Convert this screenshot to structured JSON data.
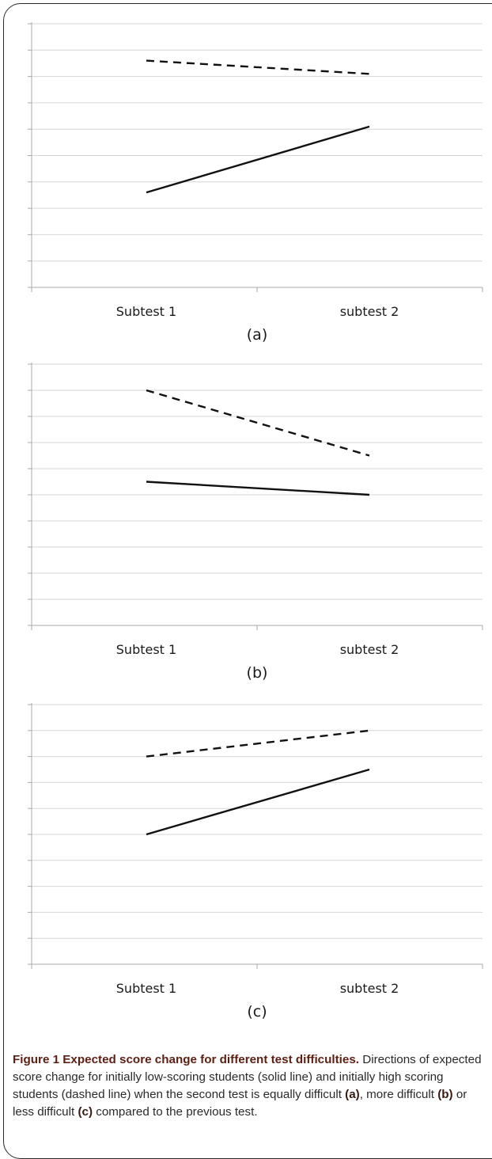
{
  "chart_data": [
    {
      "type": "line",
      "panel_label": "(a)",
      "categories": [
        "Subtest 1",
        "subtest 2"
      ],
      "ylim": [
        0,
        10
      ],
      "grid": true,
      "series": [
        {
          "style": "solid",
          "values": [
            3.6,
            6.1
          ]
        },
        {
          "style": "dashed",
          "values": [
            8.6,
            8.1
          ]
        }
      ]
    },
    {
      "type": "line",
      "panel_label": "(b)",
      "categories": [
        "Subtest 1",
        "subtest 2"
      ],
      "ylim": [
        0,
        10
      ],
      "grid": true,
      "series": [
        {
          "style": "solid",
          "values": [
            5.5,
            5.0
          ]
        },
        {
          "style": "dashed",
          "values": [
            9.0,
            6.5
          ]
        }
      ]
    },
    {
      "type": "line",
      "panel_label": "(c)",
      "categories": [
        "Subtest 1",
        "subtest 2"
      ],
      "ylim": [
        0,
        10
      ],
      "grid": true,
      "series": [
        {
          "style": "solid",
          "values": [
            5.0,
            7.5
          ]
        },
        {
          "style": "dashed",
          "values": [
            8.0,
            9.0
          ]
        }
      ]
    }
  ],
  "caption": {
    "title": "Figure 1 Expected score change for different test difficulties.",
    "text_1": "Directions of expected score change for initially low-scoring students (solid line) and initially high scoring students (dashed line) when the second test is equally difficult ",
    "label_a": "(a)",
    "text_2": ", more difficult ",
    "label_b": "(b)",
    "text_3": " or less difficult ",
    "label_c": "(c)",
    "text_4": " compared to the previous test."
  }
}
